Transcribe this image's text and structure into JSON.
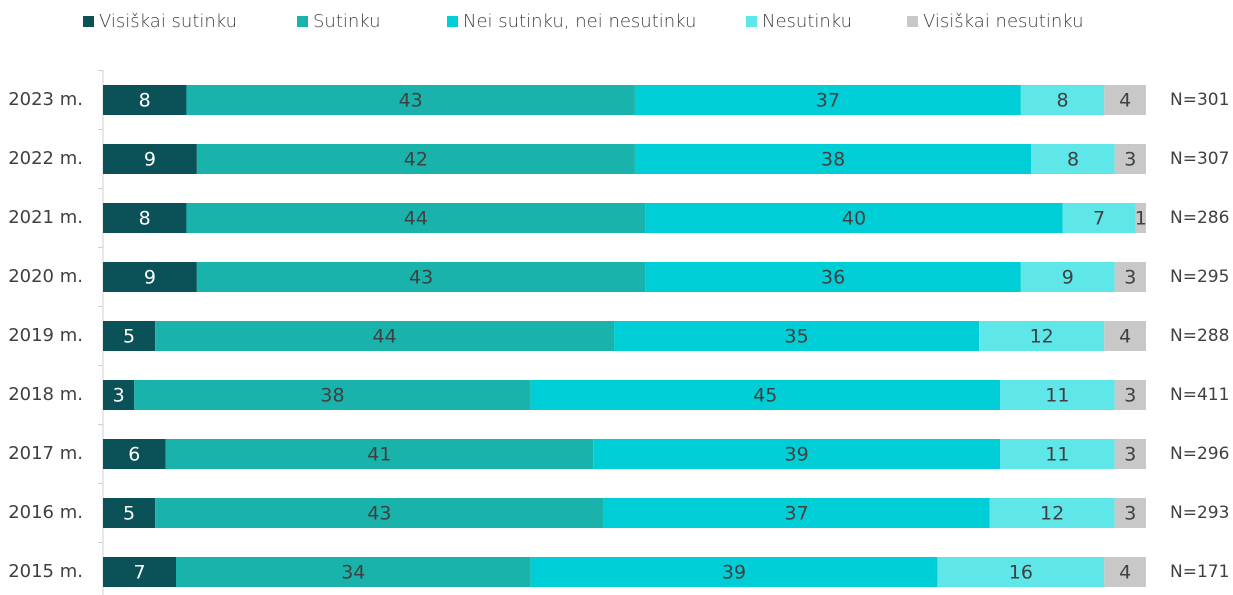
{
  "chart_data": {
    "type": "stacked-bar-horizontal",
    "categories": [
      "2023 m.",
      "2022 m.",
      "2021 m.",
      "2020 m.",
      "2019 m.",
      "2018 m.",
      "2017 m.",
      "2016 m.",
      "2015 m."
    ],
    "series": [
      {
        "name": "Visiškai sutinku",
        "color": "#0b5258",
        "values": [
          8,
          9,
          8,
          9,
          5,
          3,
          6,
          5,
          7
        ]
      },
      {
        "name": "Sutinku",
        "color": "#1ab3ac",
        "values": [
          43,
          42,
          44,
          43,
          44,
          38,
          41,
          43,
          34
        ]
      },
      {
        "name": "Nei sutinku, nei nesutinku",
        "color": "#00ced6",
        "values": [
          37,
          38,
          40,
          36,
          35,
          45,
          39,
          37,
          39
        ]
      },
      {
        "name": "Nesutinku",
        "color": "#5ee6e8",
        "values": [
          8,
          8,
          7,
          9,
          12,
          11,
          11,
          12,
          16
        ]
      },
      {
        "name": "Visiškai nesutinku",
        "color": "#c8c8c8",
        "values": [
          4,
          3,
          1,
          3,
          4,
          3,
          3,
          3,
          4
        ]
      }
    ],
    "annotations": [
      "N=301",
      "N=307",
      "N=286",
      "N=295",
      "N=288",
      "N=411",
      "N=296",
      "N=293",
      "N=171"
    ],
    "xlim": [
      0,
      100
    ]
  }
}
